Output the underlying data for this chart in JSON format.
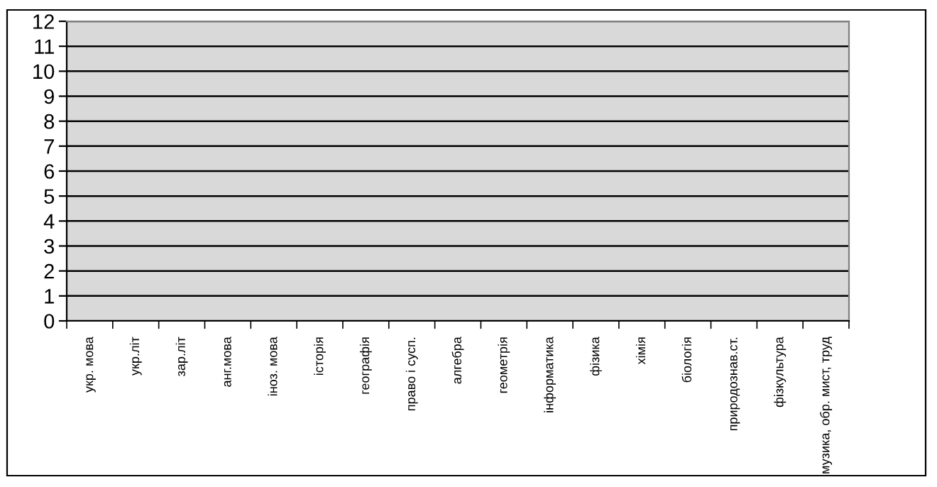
{
  "chart_data": {
    "type": "bar",
    "categories": [
      "укр. мова",
      "укр.літ",
      "зар.літ",
      "анг.мова",
      "іноз. мова",
      "історія",
      "географія",
      "право і сусп.",
      "алгебра",
      "геометрія",
      "інформатика",
      "фізика",
      "хімія",
      "біологія",
      "природознав.ст.",
      "фізкультура",
      "музика, обр. мист, труд"
    ],
    "values": [
      null,
      null,
      null,
      null,
      null,
      null,
      null,
      null,
      null,
      null,
      null,
      null,
      null,
      null,
      null,
      null,
      null
    ],
    "ylim": [
      0,
      12
    ],
    "yticks": [
      0,
      1,
      2,
      3,
      4,
      5,
      6,
      7,
      8,
      9,
      10,
      11,
      12
    ],
    "grid": "y",
    "legend": false
  }
}
